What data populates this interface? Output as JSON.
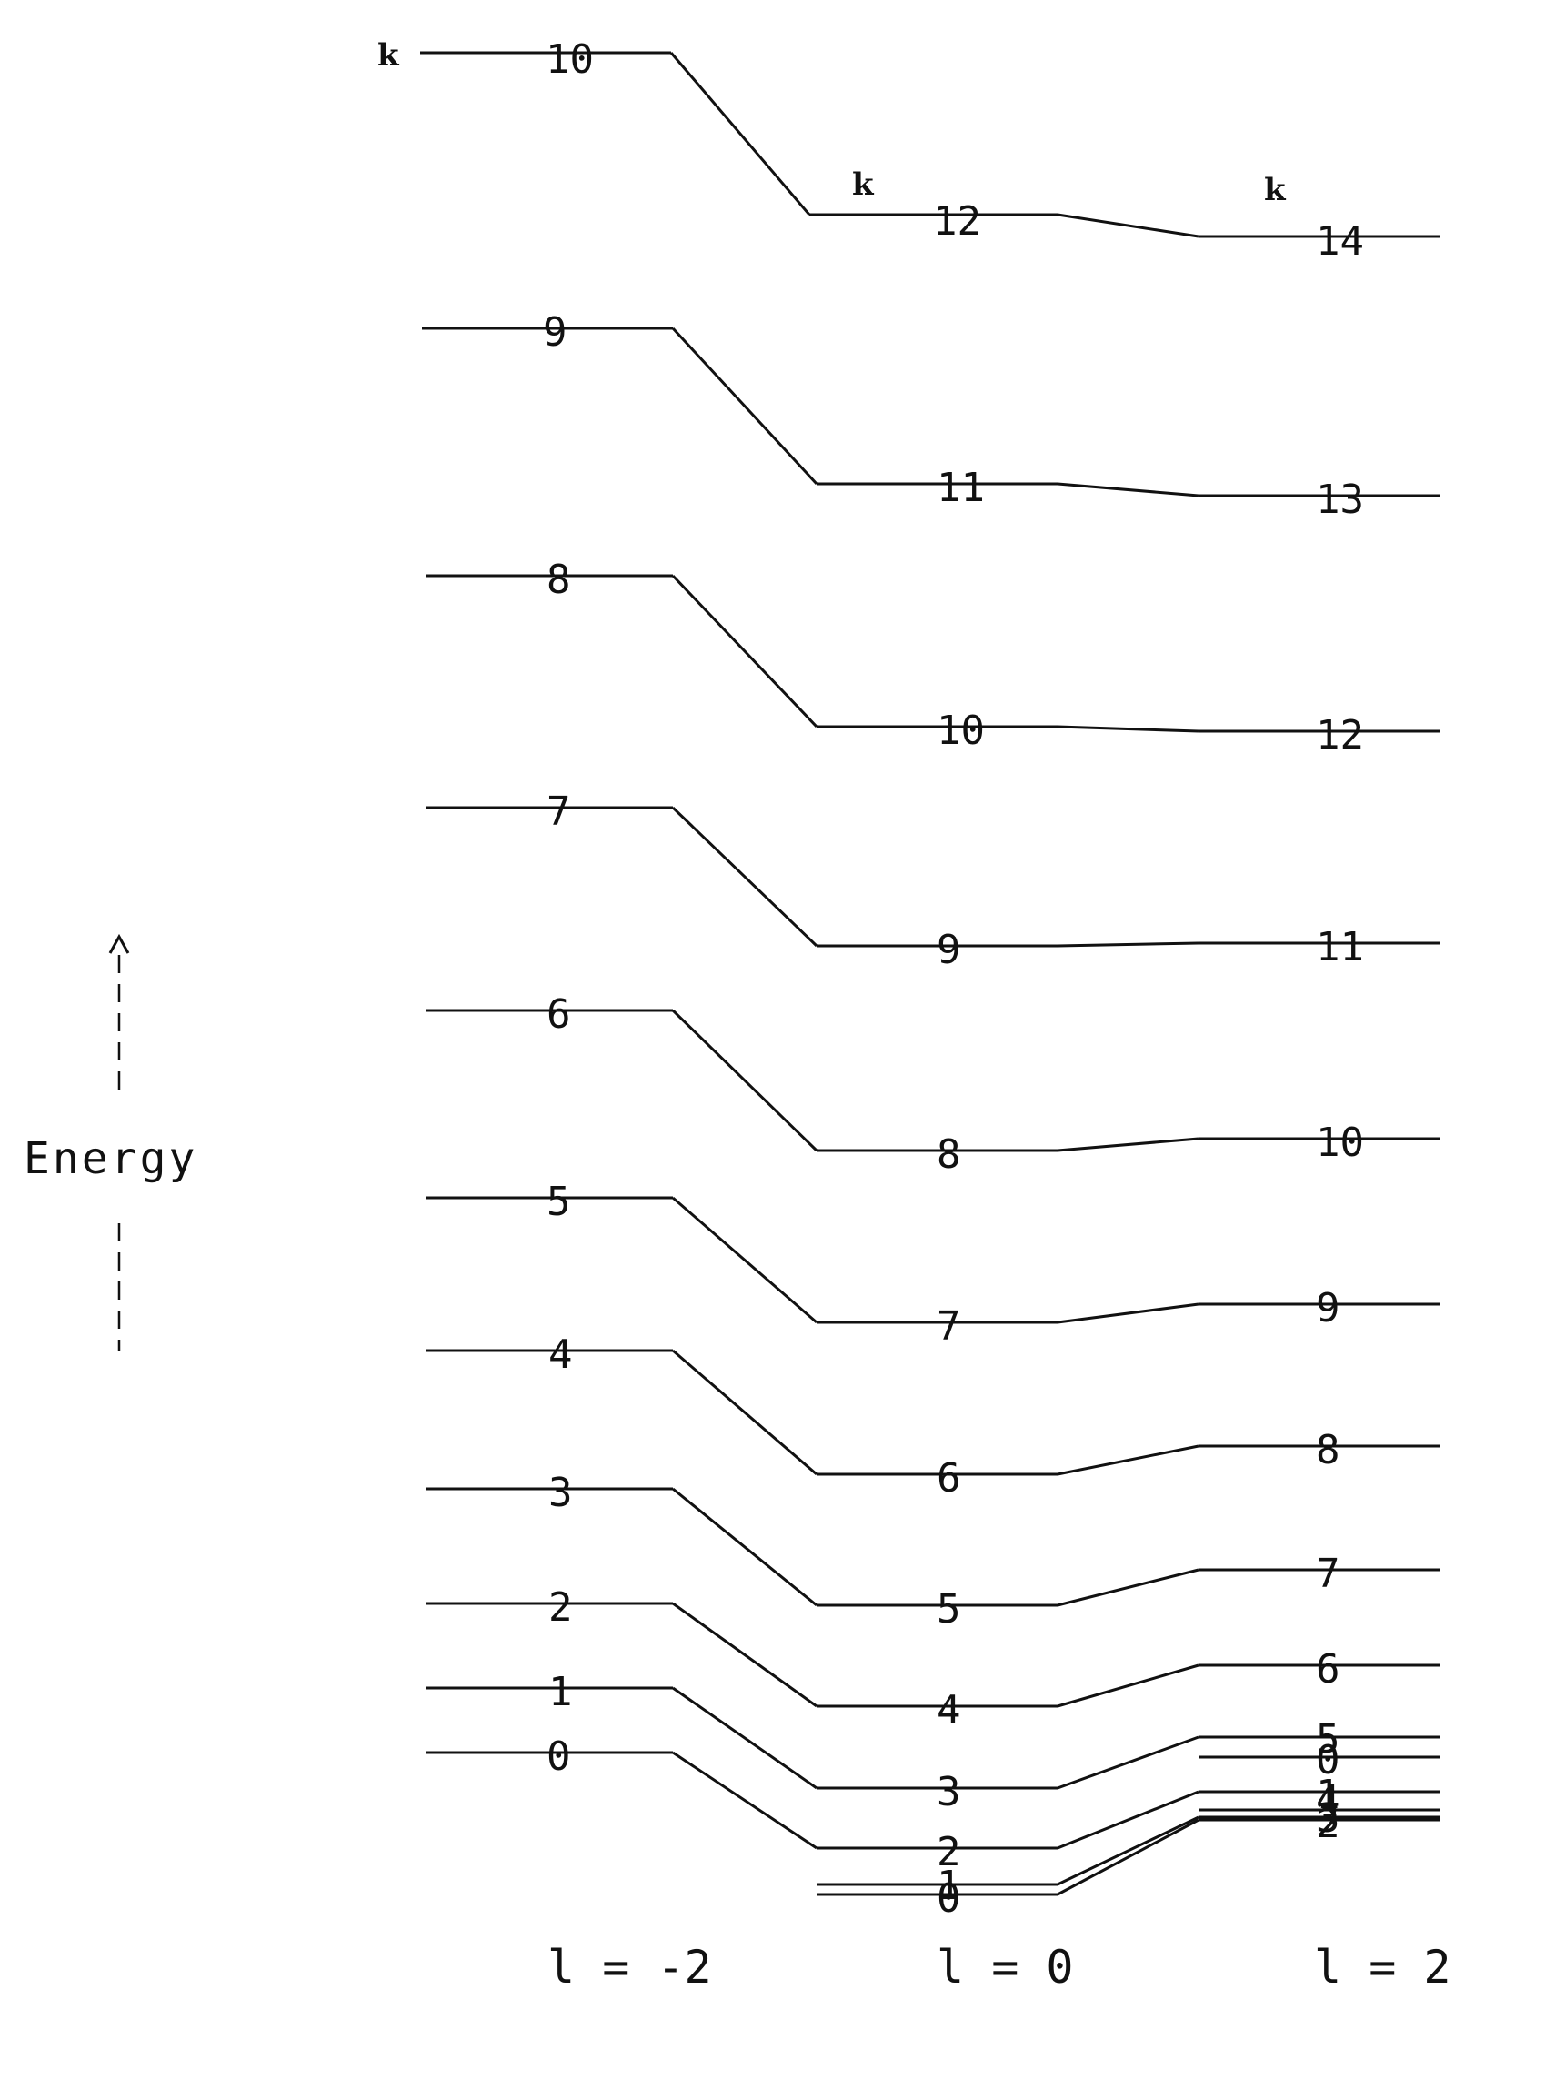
{
  "diagram": {
    "energy_label": "Energy",
    "k_label": "k",
    "columns": [
      {
        "l": "l = -2",
        "levels": [
          "0",
          "1",
          "2",
          "3",
          "4",
          "5",
          "6",
          "7",
          "8",
          "9",
          "10"
        ]
      },
      {
        "l": "l = 0",
        "levels": [
          "0",
          "1",
          "2",
          "3",
          "4",
          "5",
          "6",
          "7",
          "8",
          "9",
          "10",
          "11",
          "12"
        ]
      },
      {
        "l": "l = 2",
        "levels": [
          "0",
          "1",
          "2",
          "3",
          "4",
          "5",
          "6",
          "7",
          "8",
          "9",
          "10",
          "11",
          "12",
          "13",
          "14"
        ]
      }
    ],
    "connections_left_to_middle": [
      [
        "0",
        "2"
      ],
      [
        "1",
        "3"
      ],
      [
        "2",
        "4"
      ],
      [
        "3",
        "5"
      ],
      [
        "4",
        "6"
      ],
      [
        "5",
        "7"
      ],
      [
        "6",
        "8"
      ],
      [
        "7",
        "9"
      ],
      [
        "8",
        "10"
      ],
      [
        "9",
        "11"
      ],
      [
        "10",
        "12"
      ]
    ],
    "connections_middle_to_right": [
      [
        "0",
        "2"
      ],
      [
        "1",
        "3"
      ],
      [
        "2",
        "4"
      ],
      [
        "3",
        "5"
      ],
      [
        "4",
        "6"
      ],
      [
        "5",
        "7"
      ],
      [
        "6",
        "8"
      ],
      [
        "7",
        "9"
      ],
      [
        "8",
        "10"
      ],
      [
        "9",
        "11"
      ],
      [
        "10",
        "12"
      ],
      [
        "11",
        "13"
      ],
      [
        "12",
        "14"
      ]
    ]
  }
}
